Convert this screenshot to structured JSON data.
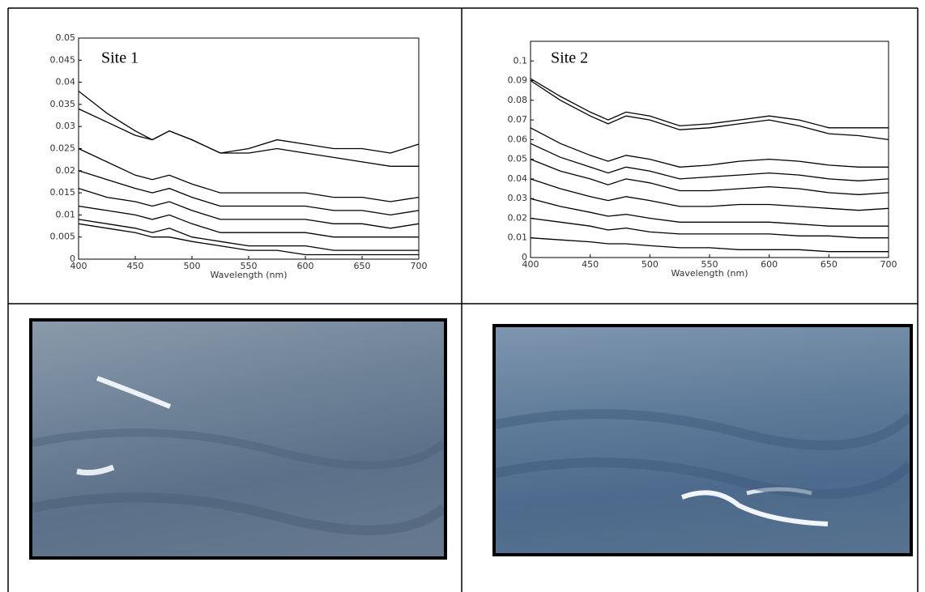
{
  "chart_data": [
    {
      "type": "line",
      "label": "Site 1",
      "xlabel": "Wavelength (nm)",
      "color": "#000000",
      "x": [
        400,
        425,
        450,
        465,
        480,
        500,
        525,
        550,
        575,
        600,
        625,
        650,
        675,
        700
      ],
      "xlim": [
        400,
        700
      ],
      "xticks": [
        400,
        450,
        500,
        550,
        600,
        650,
        700
      ],
      "ylim": [
        0,
        0.05
      ],
      "yticks": [
        0,
        0.005,
        0.01,
        0.015,
        0.02,
        0.025,
        0.03,
        0.035,
        0.04,
        0.045,
        0.05
      ],
      "series": [
        {
          "values": [
            0.038,
            0.033,
            0.029,
            0.027,
            0.029,
            0.027,
            0.024,
            0.025,
            0.027,
            0.026,
            0.025,
            0.025,
            0.024,
            0.026
          ]
        },
        {
          "values": [
            0.034,
            0.031,
            0.028,
            0.027,
            0.029,
            0.027,
            0.024,
            0.024,
            0.025,
            0.024,
            0.023,
            0.022,
            0.021,
            0.021
          ]
        },
        {
          "values": [
            0.025,
            0.022,
            0.019,
            0.018,
            0.019,
            0.017,
            0.015,
            0.015,
            0.015,
            0.015,
            0.014,
            0.014,
            0.013,
            0.014
          ]
        },
        {
          "values": [
            0.02,
            0.018,
            0.016,
            0.015,
            0.016,
            0.014,
            0.012,
            0.012,
            0.012,
            0.012,
            0.011,
            0.011,
            0.01,
            0.011
          ]
        },
        {
          "values": [
            0.016,
            0.014,
            0.013,
            0.012,
            0.013,
            0.011,
            0.009,
            0.009,
            0.009,
            0.009,
            0.008,
            0.008,
            0.007,
            0.008
          ]
        },
        {
          "values": [
            0.012,
            0.011,
            0.01,
            0.009,
            0.01,
            0.008,
            0.006,
            0.006,
            0.006,
            0.006,
            0.005,
            0.005,
            0.005,
            0.005
          ]
        },
        {
          "values": [
            0.009,
            0.008,
            0.007,
            0.006,
            0.007,
            0.005,
            0.004,
            0.003,
            0.003,
            0.003,
            0.002,
            0.002,
            0.002,
            0.002
          ]
        },
        {
          "values": [
            0.008,
            0.007,
            0.006,
            0.005,
            0.005,
            0.004,
            0.003,
            0.002,
            0.002,
            0.001,
            0.001,
            0.001,
            0.001,
            0.001
          ]
        }
      ]
    },
    {
      "type": "line",
      "label": "Site 2",
      "xlabel": "Wavelength (nm)",
      "color": "#000000",
      "x": [
        400,
        425,
        450,
        465,
        480,
        500,
        525,
        550,
        575,
        600,
        625,
        650,
        675,
        700
      ],
      "xlim": [
        400,
        700
      ],
      "xticks": [
        400,
        450,
        500,
        550,
        600,
        650,
        700
      ],
      "ylim": [
        0,
        0.11
      ],
      "yticks": [
        0,
        0.01,
        0.02,
        0.03,
        0.04,
        0.05,
        0.06,
        0.07,
        0.08,
        0.09,
        0.1
      ],
      "series": [
        {
          "values": [
            0.091,
            0.082,
            0.074,
            0.07,
            0.074,
            0.072,
            0.067,
            0.068,
            0.07,
            0.072,
            0.07,
            0.066,
            0.066,
            0.066
          ]
        },
        {
          "values": [
            0.09,
            0.08,
            0.072,
            0.068,
            0.072,
            0.07,
            0.065,
            0.066,
            0.068,
            0.07,
            0.067,
            0.063,
            0.062,
            0.06
          ]
        },
        {
          "values": [
            0.066,
            0.058,
            0.052,
            0.049,
            0.052,
            0.05,
            0.046,
            0.047,
            0.049,
            0.05,
            0.049,
            0.047,
            0.046,
            0.046
          ]
        },
        {
          "values": [
            0.058,
            0.051,
            0.046,
            0.043,
            0.046,
            0.044,
            0.04,
            0.041,
            0.042,
            0.043,
            0.042,
            0.04,
            0.039,
            0.04
          ]
        },
        {
          "values": [
            0.05,
            0.044,
            0.04,
            0.037,
            0.04,
            0.038,
            0.034,
            0.034,
            0.035,
            0.036,
            0.035,
            0.033,
            0.032,
            0.033
          ]
        },
        {
          "values": [
            0.04,
            0.035,
            0.031,
            0.029,
            0.031,
            0.029,
            0.026,
            0.026,
            0.027,
            0.027,
            0.026,
            0.025,
            0.024,
            0.025
          ]
        },
        {
          "values": [
            0.03,
            0.026,
            0.023,
            0.021,
            0.022,
            0.02,
            0.018,
            0.018,
            0.018,
            0.018,
            0.017,
            0.016,
            0.016,
            0.016
          ]
        },
        {
          "values": [
            0.02,
            0.018,
            0.016,
            0.014,
            0.015,
            0.013,
            0.012,
            0.012,
            0.012,
            0.012,
            0.011,
            0.011,
            0.01,
            0.01
          ]
        },
        {
          "values": [
            0.01,
            0.009,
            0.008,
            0.007,
            0.007,
            0.006,
            0.005,
            0.005,
            0.004,
            0.004,
            0.004,
            0.003,
            0.003,
            0.003
          ]
        }
      ]
    }
  ]
}
